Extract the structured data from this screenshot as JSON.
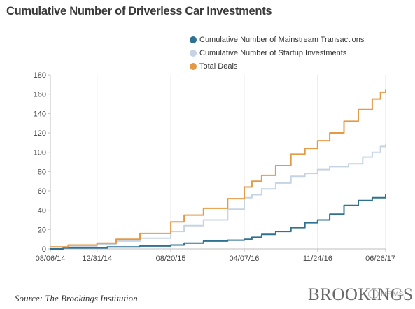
{
  "chart_data": {
    "type": "line",
    "title": "Cumulative Number of Driverless Car Investments",
    "xlabel": "",
    "ylabel": "",
    "ylim": [
      0,
      180
    ],
    "yticks": [
      0,
      20,
      40,
      60,
      80,
      100,
      120,
      140,
      160,
      180
    ],
    "xticks": [
      "08/06/14",
      "12/31/14",
      "08/20/15",
      "04/07/16",
      "11/24/16",
      "06/26/17"
    ],
    "grid": "vertical",
    "legend_position": "top-right",
    "series": [
      {
        "name": "Cumulative Number of Mainstream Transactions",
        "color": "#2e7190",
        "points": [
          [
            "08/06/14",
            0
          ],
          [
            "09/15/14",
            1
          ],
          [
            "12/31/14",
            1
          ],
          [
            "02/01/15",
            2
          ],
          [
            "05/15/15",
            3
          ],
          [
            "08/20/15",
            4
          ],
          [
            "10/01/15",
            6
          ],
          [
            "12/01/15",
            8
          ],
          [
            "02/15/16",
            9
          ],
          [
            "04/07/16",
            10
          ],
          [
            "05/01/16",
            12
          ],
          [
            "06/01/16",
            15
          ],
          [
            "07/15/16",
            18
          ],
          [
            "09/01/16",
            22
          ],
          [
            "10/15/16",
            27
          ],
          [
            "11/24/16",
            30
          ],
          [
            "01/01/17",
            36
          ],
          [
            "02/15/17",
            45
          ],
          [
            "04/01/17",
            50
          ],
          [
            "05/15/17",
            53
          ],
          [
            "06/26/17",
            56
          ]
        ]
      },
      {
        "name": "Cumulative Number of Startup Investments",
        "color": "#c5d3e3",
        "points": [
          [
            "08/06/14",
            2
          ],
          [
            "10/01/14",
            3
          ],
          [
            "12/31/14",
            5
          ],
          [
            "03/01/15",
            8
          ],
          [
            "05/15/15",
            11
          ],
          [
            "08/20/15",
            18
          ],
          [
            "10/01/15",
            24
          ],
          [
            "12/01/15",
            30
          ],
          [
            "02/15/16",
            41
          ],
          [
            "04/07/16",
            53
          ],
          [
            "05/01/16",
            56
          ],
          [
            "06/01/16",
            62
          ],
          [
            "07/15/16",
            68
          ],
          [
            "09/01/16",
            75
          ],
          [
            "10/15/16",
            78
          ],
          [
            "11/24/16",
            82
          ],
          [
            "01/01/17",
            85
          ],
          [
            "03/01/17",
            88
          ],
          [
            "04/15/17",
            95
          ],
          [
            "05/15/17",
            100
          ],
          [
            "06/10/17",
            106
          ],
          [
            "06/26/17",
            108
          ]
        ]
      },
      {
        "name": "Total Deals",
        "color": "#e49a45",
        "points": [
          [
            "08/06/14",
            2
          ],
          [
            "10/01/14",
            4
          ],
          [
            "12/31/14",
            6
          ],
          [
            "03/01/15",
            10
          ],
          [
            "05/15/15",
            16
          ],
          [
            "08/20/15",
            28
          ],
          [
            "10/01/15",
            35
          ],
          [
            "12/01/15",
            42
          ],
          [
            "02/15/16",
            52
          ],
          [
            "04/07/16",
            64
          ],
          [
            "05/01/16",
            70
          ],
          [
            "06/01/16",
            76
          ],
          [
            "07/15/16",
            86
          ],
          [
            "09/01/16",
            98
          ],
          [
            "10/15/16",
            104
          ],
          [
            "11/24/16",
            112
          ],
          [
            "01/01/17",
            120
          ],
          [
            "02/15/17",
            132
          ],
          [
            "04/01/17",
            144
          ],
          [
            "05/15/17",
            155
          ],
          [
            "06/10/17",
            162
          ],
          [
            "06/26/17",
            164
          ]
        ]
      }
    ]
  },
  "footer": {
    "source": "Source: The Brookings Institution",
    "logo": "BROOKINGS",
    "watermark": "MEMS"
  }
}
